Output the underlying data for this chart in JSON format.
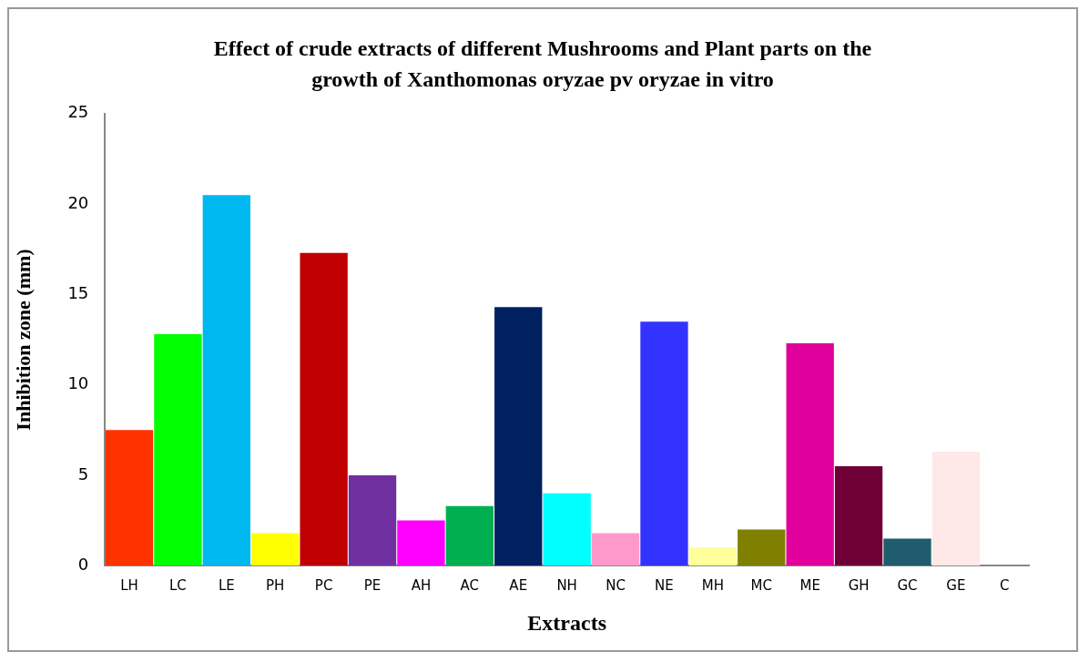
{
  "chart_data": {
    "type": "bar",
    "title": "Effect of crude extracts of different Mushrooms and Plant parts on the growth of Xanthomonas oryzae pv oryzae in vitro",
    "xlabel": "Extracts",
    "ylabel": "Inhibition zone (mm)",
    "categories": [
      "LH",
      "LC",
      "LE",
      "PH",
      "PC",
      "PE",
      "AH",
      "AC",
      "AE",
      "NH",
      "NC",
      "NE",
      "MH",
      "MC",
      "ME",
      "GH",
      "GC",
      "GE",
      "C"
    ],
    "values": [
      7.5,
      12.8,
      20.5,
      1.8,
      17.3,
      5.0,
      2.5,
      3.3,
      14.3,
      4.0,
      1.8,
      13.5,
      1.0,
      2.0,
      12.3,
      5.5,
      1.5,
      6.3,
      0
    ],
    "colors": [
      "#ff3300",
      "#00ff00",
      "#00b8f0",
      "#ffff00",
      "#c00000",
      "#7030a0",
      "#ff00ff",
      "#00b050",
      "#002060",
      "#00ffff",
      "#ff99cc",
      "#3333ff",
      "#ffff99",
      "#808000",
      "#e0009c",
      "#6e0036",
      "#1f5c6e",
      "#ffe8e8",
      "#000000"
    ],
    "ylim": [
      0,
      25
    ],
    "yticks": [
      0,
      5,
      10,
      15,
      20,
      25
    ],
    "grid": false,
    "legend": false
  }
}
